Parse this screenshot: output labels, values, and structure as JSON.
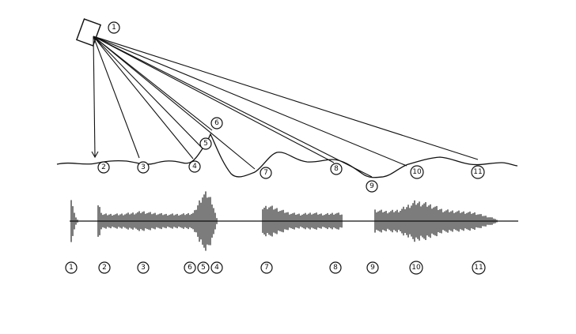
{
  "diagram": {
    "colors": {
      "ink": "#111111",
      "background": "#ffffff"
    },
    "source_label": "1",
    "seabed_labels": [
      "2",
      "3",
      "4",
      "5",
      "6",
      "7",
      "8",
      "9",
      "10",
      "11"
    ],
    "waveform_labels": [
      "1",
      "2",
      "3",
      "6",
      "5",
      "4",
      "7",
      "8",
      "9",
      "10",
      "11"
    ]
  }
}
